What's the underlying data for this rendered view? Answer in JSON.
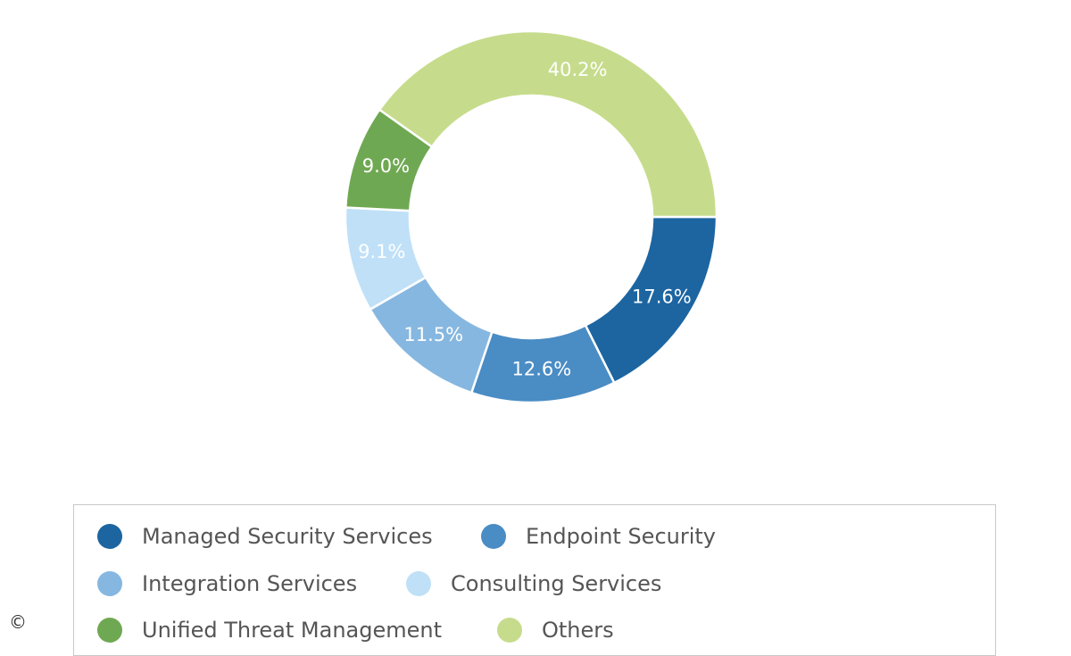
{
  "chart_data": {
    "type": "pie",
    "donut": true,
    "categories": [
      "Managed Security Services",
      "Endpoint Security",
      "Integration Services",
      "Consulting Services",
      "Unified Threat Management",
      "Others"
    ],
    "values": [
      17.6,
      12.6,
      11.5,
      9.1,
      9.0,
      40.2
    ],
    "labels": [
      "17.6%",
      "12.6%",
      "11.5%",
      "9.1%",
      "9.0%",
      "40.2%"
    ],
    "colors": [
      "#1c65a1",
      "#4a8cc4",
      "#86b7e0",
      "#bfe0f7",
      "#6fa852",
      "#c6dc8c"
    ],
    "legend_position": "bottom"
  },
  "copyright_symbol": "©"
}
